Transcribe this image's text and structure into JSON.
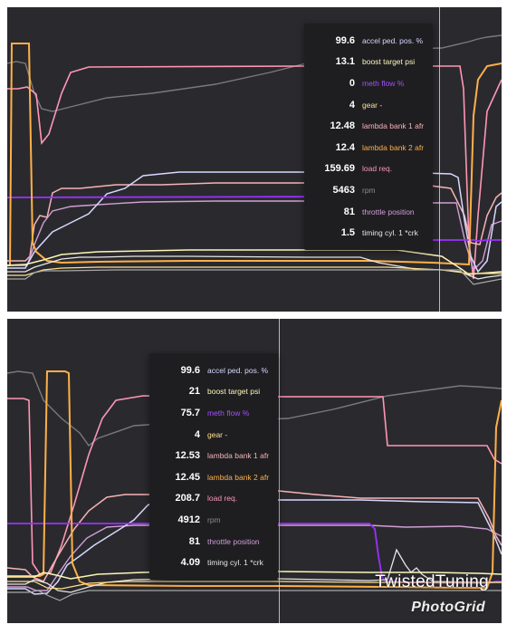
{
  "panels": [
    {
      "tooltip_rows": [
        {
          "value": "99.6",
          "name": "accel ped. pos. %",
          "color": "#d7d7ff"
        },
        {
          "value": "13.1",
          "name": "boost target psi",
          "color": "#fdf6b8"
        },
        {
          "value": "0",
          "name": "meth flow %",
          "color": "#9b30ff"
        },
        {
          "value": "4",
          "name": "gear -",
          "color": "#ffe08a"
        },
        {
          "value": "12.48",
          "name": "lambda bank 1 afr",
          "color": "#f6b3b8"
        },
        {
          "value": "12.4",
          "name": "lambda bank 2 afr",
          "color": "#ffb048"
        },
        {
          "value": "159.69",
          "name": "load req.",
          "color": "#ff96b4"
        },
        {
          "value": "5463",
          "name": "rpm",
          "color": "#8c8c8c"
        },
        {
          "value": "81",
          "name": "throttle position",
          "color": "#d19fd6"
        },
        {
          "value": "1.5",
          "name": "timing cyl. 1 *crk",
          "color": "#e6e6e6"
        }
      ]
    },
    {
      "tooltip_rows": [
        {
          "value": "99.6",
          "name": "accel ped. pos. %",
          "color": "#d7d7ff"
        },
        {
          "value": "21",
          "name": "boost target psi",
          "color": "#fdf6b8"
        },
        {
          "value": "75.7",
          "name": "meth flow %",
          "color": "#9b30ff"
        },
        {
          "value": "4",
          "name": "gear -",
          "color": "#ffe08a"
        },
        {
          "value": "12.53",
          "name": "lambda bank 1 afr",
          "color": "#f6b3b8"
        },
        {
          "value": "12.45",
          "name": "lambda bank 2 afr",
          "color": "#ffb048"
        },
        {
          "value": "208.7",
          "name": "load req.",
          "color": "#ff96b4"
        },
        {
          "value": "4912",
          "name": "rpm",
          "color": "#8c8c8c"
        },
        {
          "value": "81",
          "name": "throttle position",
          "color": "#d19fd6"
        },
        {
          "value": "4.09",
          "name": "timing cyl. 1 *crk",
          "color": "#e6e6e6"
        }
      ]
    }
  ],
  "watermark": {
    "brand": "TwistedTuning",
    "app": "PhotoGrid"
  }
}
